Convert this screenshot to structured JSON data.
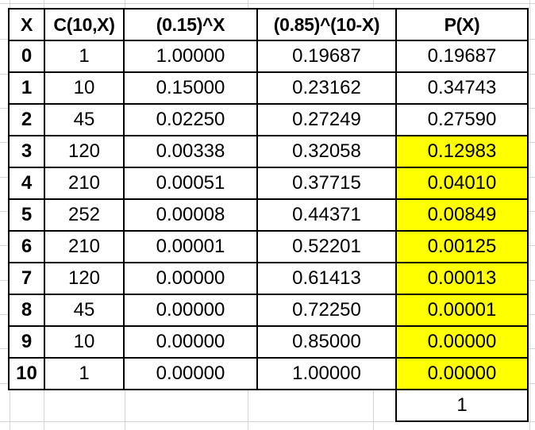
{
  "sheet": {
    "colors": {
      "background": "#ffffff",
      "gridline": "#d6d6d6",
      "border": "#000000",
      "text": "#000000",
      "highlight": "#ffff00"
    }
  },
  "table": {
    "headers": [
      "X",
      "C(10,X)",
      "(0.15)^X",
      "(0.85)^(10-X)",
      "P(X)"
    ],
    "rows": [
      {
        "x": "0",
        "c": "1",
        "p15": "1.00000",
        "p85": "0.19687",
        "px": "0.19687",
        "highlight": false
      },
      {
        "x": "1",
        "c": "10",
        "p15": "0.15000",
        "p85": "0.23162",
        "px": "0.34743",
        "highlight": false
      },
      {
        "x": "2",
        "c": "45",
        "p15": "0.02250",
        "p85": "0.27249",
        "px": "0.27590",
        "highlight": false
      },
      {
        "x": "3",
        "c": "120",
        "p15": "0.00338",
        "p85": "0.32058",
        "px": "0.12983",
        "highlight": true
      },
      {
        "x": "4",
        "c": "210",
        "p15": "0.00051",
        "p85": "0.37715",
        "px": "0.04010",
        "highlight": true
      },
      {
        "x": "5",
        "c": "252",
        "p15": "0.00008",
        "p85": "0.44371",
        "px": "0.00849",
        "highlight": true
      },
      {
        "x": "6",
        "c": "210",
        "p15": "0.00001",
        "p85": "0.52201",
        "px": "0.00125",
        "highlight": true
      },
      {
        "x": "7",
        "c": "120",
        "p15": "0.00000",
        "p85": "0.61413",
        "px": "0.00013",
        "highlight": true
      },
      {
        "x": "8",
        "c": "45",
        "p15": "0.00000",
        "p85": "0.72250",
        "px": "0.00001",
        "highlight": true
      },
      {
        "x": "9",
        "c": "10",
        "p15": "0.00000",
        "p85": "0.85000",
        "px": "0.00000",
        "highlight": true
      },
      {
        "x": "10",
        "c": "1",
        "p15": "0.00000",
        "p85": "1.00000",
        "px": "0.00000",
        "highlight": true
      }
    ],
    "total": "1"
  }
}
